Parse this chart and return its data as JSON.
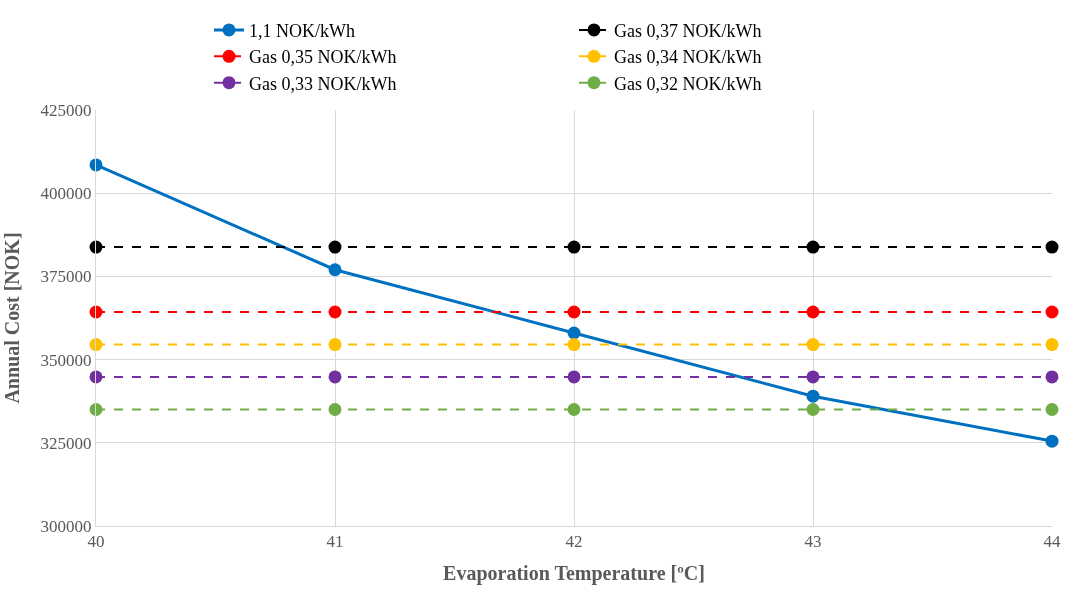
{
  "chart_data": {
    "type": "line",
    "xlabel": "Evaporation Temperature [ºC]",
    "ylabel": "Annual Cost [NOK]",
    "x": [
      40,
      41,
      42,
      43,
      44
    ],
    "series": [
      {
        "name": "1,1 NOK/kWh",
        "color": "#0070c0",
        "line_style": "solid",
        "values": [
          408500,
          377000,
          358000,
          339000,
          325500
        ]
      },
      {
        "name": "Gas 0,37 NOK/kWh",
        "color": "#000000",
        "line_style": "dashed",
        "values": [
          383800,
          383800,
          383800,
          383800,
          383800
        ]
      },
      {
        "name": "Gas 0,35 NOK/kWh",
        "color": "#ff0000",
        "line_style": "dashed",
        "values": [
          364300,
          364300,
          364300,
          364300,
          364300
        ]
      },
      {
        "name": "Gas 0,34 NOK/kWh",
        "color": "#ffc000",
        "line_style": "dashed",
        "values": [
          354500,
          354500,
          354500,
          354500,
          354500
        ]
      },
      {
        "name": "Gas 0,33 NOK/kWh",
        "color": "#7030a0",
        "line_style": "dashed",
        "values": [
          344800,
          344800,
          344800,
          344800,
          344800
        ]
      },
      {
        "name": "Gas 0,32 NOK/kWh",
        "color": "#70ad47",
        "line_style": "dashed",
        "values": [
          335000,
          335000,
          335000,
          335000,
          335000
        ]
      }
    ],
    "xlim": [
      40,
      44
    ],
    "xticks": [
      40,
      41,
      42,
      43,
      44
    ],
    "ylim": [
      300000,
      425000
    ],
    "yticks": [
      300000,
      325000,
      350000,
      375000,
      400000,
      425000
    ],
    "grid": true,
    "legend": "top",
    "marker": "circle"
  }
}
